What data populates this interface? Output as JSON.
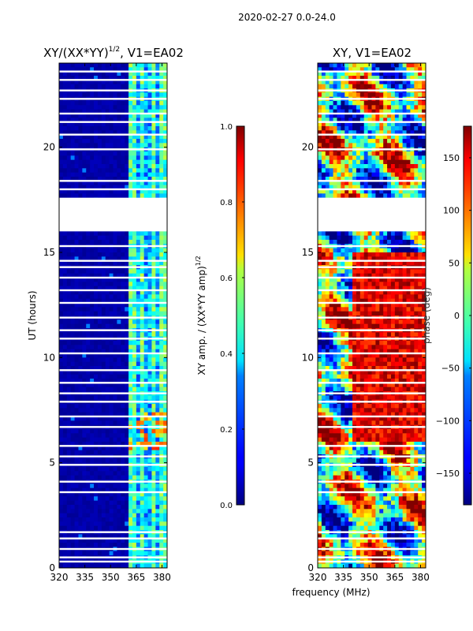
{
  "figure": {
    "suptitle": "2020-02-27 0.0-24.0",
    "xlabel": "frequency (MHz)"
  },
  "chart_data": [
    {
      "type": "heatmap",
      "title_main": "XY/(XX*YY)",
      "title_exp": "1/2",
      "title_rest": ", V1=EA02",
      "ylabel": "UT (hours)",
      "x_ticks": [
        320,
        335,
        350,
        365,
        380
      ],
      "y_ticks": [
        0,
        5,
        10,
        15,
        20
      ],
      "xlim": [
        320,
        383
      ],
      "ylim": [
        0,
        24
      ],
      "data_gap_hours": [
        17.6,
        16.0
      ],
      "colorbar": {
        "label_main": "XY amp. / (XX*YY amp)",
        "label_exp": "1/2",
        "range": [
          0.0,
          1.0
        ],
        "ticks": [
          "0.0",
          "0.2",
          "0.4",
          "0.6",
          "0.8",
          "1.0"
        ],
        "tick_values": [
          0.0,
          0.2,
          0.4,
          0.6,
          0.8,
          1.0
        ],
        "colormap": "jet"
      }
    },
    {
      "type": "heatmap",
      "title": "XY, V1=EA02",
      "x_ticks": [
        320,
        335,
        350,
        365,
        380
      ],
      "y_ticks": [
        0,
        5,
        10,
        15,
        20
      ],
      "xlim": [
        320,
        383
      ],
      "ylim": [
        0,
        24
      ],
      "data_gap_hours": [
        17.6,
        16.0
      ],
      "colorbar": {
        "label": "phase (deg)",
        "range": [
          -180,
          180
        ],
        "ticks": [
          "−150",
          "−100",
          "−50",
          "0",
          "50",
          "100",
          "150"
        ],
        "tick_values": [
          -150,
          -100,
          -50,
          0,
          50,
          100,
          150
        ],
        "colormap": "jet"
      }
    }
  ],
  "colors": {
    "background": "#ffffff",
    "low": "#00008f",
    "axis": "#000000"
  }
}
